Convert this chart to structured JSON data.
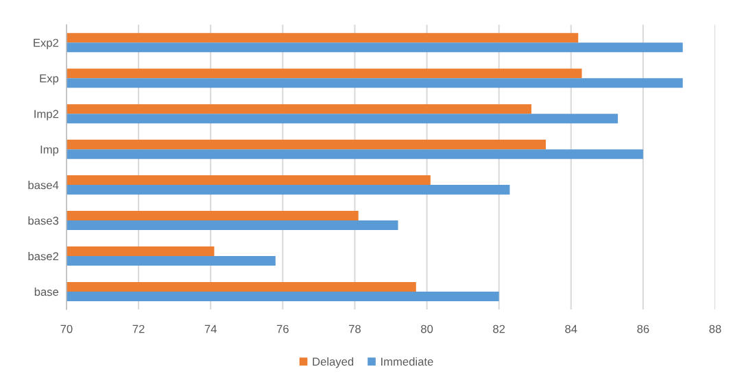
{
  "chart_data": {
    "type": "bar",
    "orientation": "horizontal",
    "categories": [
      "Exp2",
      "Exp",
      "Imp2",
      "Imp",
      "base4",
      "base3",
      "base2",
      "base"
    ],
    "series": [
      {
        "name": "Delayed",
        "color": "#ed7d31",
        "values": [
          84.2,
          84.3,
          82.9,
          83.3,
          80.1,
          78.1,
          74.1,
          79.7
        ]
      },
      {
        "name": "Immediate",
        "color": "#5b9bd5",
        "values": [
          87.1,
          87.1,
          85.3,
          86.0,
          82.3,
          79.2,
          75.8,
          82.0
        ]
      }
    ],
    "xlim": [
      70,
      88
    ],
    "xticks": [
      70,
      72,
      74,
      76,
      78,
      80,
      82,
      84,
      86,
      88
    ],
    "grid": "x",
    "legend": "bottom"
  }
}
